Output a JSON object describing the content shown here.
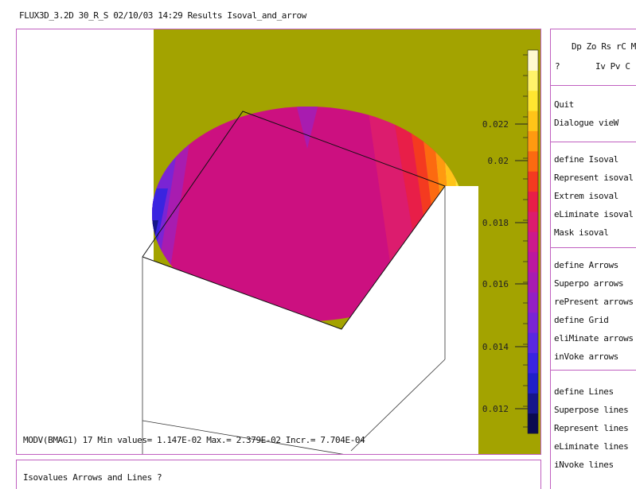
{
  "window": {
    "title": "FLUX3D_3.2D 30_R_S 02/10/03 14:29 Results Isoval_and_arrow"
  },
  "plot": {
    "background_color": "#a3a300",
    "status": "MODV(BMAG1)  17 Min values= 1.147E-02 Max.= 2.379E-02 Incr.= 7.704E-04",
    "scale": {
      "labels": [
        "0.022",
        "0.02",
        "0.018",
        "0.016",
        "0.014",
        "0.012"
      ],
      "colors": [
        "#0a0a50",
        "#16168a",
        "#2020c8",
        "#3a24e0",
        "#5a28e0",
        "#7a24d4",
        "#9420c4",
        "#a81cb0",
        "#bc18a0",
        "#cc1a8c",
        "#dc1c6e",
        "#e81e48",
        "#f43a20",
        "#fc6a10",
        "#ff9a10",
        "#ffc418",
        "#ffe630",
        "#fff36a",
        "#fffad0"
      ]
    }
  },
  "prompt": {
    "text": "Isovalues Arrows and Lines ?"
  },
  "menu": {
    "system_row1": "Dp Zo Rs rC M",
    "system_q": "?",
    "system_row2": "Iv Pv C",
    "groups": [
      {
        "items": [
          "Quit",
          "Dialogue  vieW"
        ]
      },
      {
        "items": [
          "define Isoval",
          "Represent isoval",
          "Extrem isoval",
          "eLiminate isoval",
          "Mask isoval"
        ]
      },
      {
        "items": [
          "define Arrows",
          "Superpo arrows",
          "rePresent arrows",
          "define Grid",
          "eliMinate arrows",
          "inVoke arrows"
        ]
      },
      {
        "items": [
          "define Lines",
          "Superpose lines",
          "Represent lines",
          "eLiminate lines",
          "iNvoke lines"
        ]
      }
    ]
  }
}
